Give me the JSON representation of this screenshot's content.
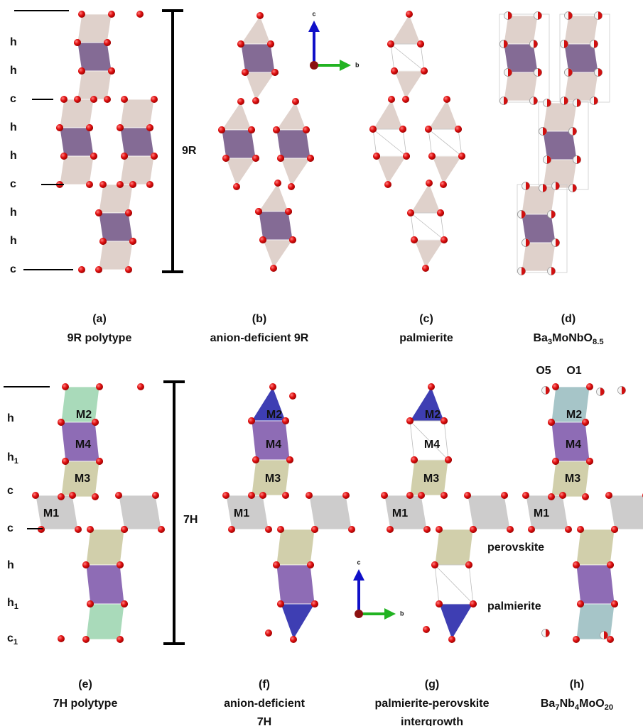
{
  "top_row": {
    "stacking": [
      [
        "h"
      ],
      [
        "h"
      ],
      [
        "c"
      ],
      [
        "h"
      ],
      [
        "h"
      ],
      [
        "c"
      ],
      [
        "h"
      ],
      [
        "h"
      ],
      [
        "c"
      ]
    ],
    "length_label": "9R",
    "axes": {
      "c": "c",
      "b": "b"
    }
  },
  "bottom_row": {
    "stacking": [
      [
        "h"
      ],
      [
        "h",
        "1"
      ],
      [
        "c"
      ],
      [
        "c"
      ],
      [
        "h"
      ],
      [
        "h",
        "1"
      ],
      [
        "c",
        "1"
      ]
    ],
    "length_label": "7H",
    "axes": {
      "c": "c",
      "b": "b"
    }
  },
  "panels": [
    {
      "label": "(a)",
      "caption": [
        [
          "9R polytype"
        ]
      ]
    },
    {
      "label": "(b)",
      "caption": [
        [
          "anion-deficient 9R"
        ]
      ]
    },
    {
      "label": "(c)",
      "caption": [
        [
          "palmierite"
        ]
      ]
    },
    {
      "label": "(d)",
      "caption": [
        [
          "Ba",
          "3",
          "MoNbO",
          "8.5"
        ]
      ]
    },
    {
      "label": "(e)",
      "caption": [
        [
          "7H polytype"
        ]
      ],
      "sites": [
        "M2",
        "M4",
        "M3",
        "M1"
      ]
    },
    {
      "label": "(f)",
      "caption": [
        [
          "anion-deficient"
        ],
        [
          "7H"
        ]
      ],
      "sites": [
        "M2",
        "M4",
        "M3",
        "M1"
      ]
    },
    {
      "label": "(g)",
      "caption": [
        [
          "palmierite-perovskite"
        ],
        [
          "intergrowth"
        ]
      ],
      "sites": [
        "M2",
        "M4",
        "M3",
        "M1"
      ]
    },
    {
      "label": "(h)",
      "caption": [
        [
          "Ba",
          "7",
          "Nb",
          "4",
          "MoO",
          "20"
        ]
      ],
      "sites": [
        "M2",
        "M4",
        "M3",
        "M1"
      ]
    }
  ],
  "annotations": {
    "o5": "O5",
    "o1": "O1",
    "perovskite": "perovskite",
    "palmierite": "palmierite"
  }
}
